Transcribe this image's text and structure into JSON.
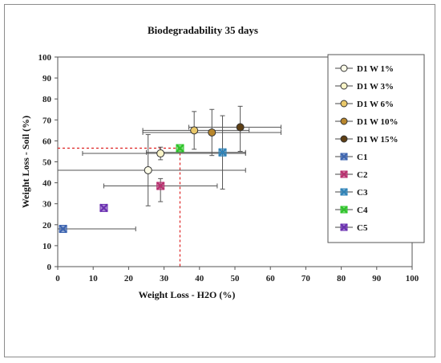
{
  "chart_data": {
    "type": "scatter",
    "title": "Biodegradability 35 days",
    "xlabel": "Weight Loss - H2O (%)",
    "ylabel": "Weight Loss - Soil (%)",
    "xlim": [
      0,
      100
    ],
    "ylim": [
      0,
      100
    ],
    "x_ticks": [
      "0",
      "10",
      "20",
      "30",
      "40",
      "50",
      "60",
      "70",
      "80",
      "90",
      "100"
    ],
    "y_ticks": [
      "0",
      "10",
      "20",
      "30",
      "40",
      "50",
      "60",
      "70",
      "80",
      "90",
      "100"
    ],
    "grid": false,
    "legend_position": "right",
    "series": [
      {
        "name": "D1 W 1%",
        "marker": "circle",
        "color": "#fdfce8",
        "x": 25.5,
        "y": 46,
        "xerr": [
          0,
          53
        ],
        "yerr": [
          29,
          63
        ]
      },
      {
        "name": "D1 W 3%",
        "marker": "circle",
        "color": "#faf4c8",
        "x": 29,
        "y": 54,
        "xerr": [
          7,
          53
        ],
        "yerr": [
          51,
          57
        ]
      },
      {
        "name": "D1 W 6%",
        "marker": "circle",
        "color": "#e9c86a",
        "x": 38.5,
        "y": 65,
        "xerr": [
          24,
          54
        ],
        "yerr": [
          56,
          74
        ]
      },
      {
        "name": "D1 W 10%",
        "marker": "circle",
        "color": "#b8862c",
        "x": 43.5,
        "y": 64,
        "xerr": [
          24,
          63
        ],
        "yerr": [
          53,
          75
        ]
      },
      {
        "name": "D1 W 15%",
        "marker": "circle",
        "color": "#5e3f14",
        "x": 51.5,
        "y": 66.5,
        "xerr": [
          37,
          63
        ],
        "yerr": [
          55,
          76.5
        ]
      },
      {
        "name": "C1",
        "marker": "x-square",
        "color": "#3d64b0",
        "x": 1.5,
        "y": 18,
        "xerr": [
          0,
          22
        ],
        "yerr": [
          18,
          18
        ]
      },
      {
        "name": "C2",
        "marker": "x-square",
        "color": "#b8306f",
        "x": 29,
        "y": 38.5,
        "xerr": [
          13,
          45
        ],
        "yerr": [
          31,
          42
        ]
      },
      {
        "name": "C3",
        "marker": "x-square",
        "color": "#2f83b8",
        "x": 46.5,
        "y": 54.5,
        "xerr": [
          25,
          53
        ],
        "yerr": [
          37,
          72
        ]
      },
      {
        "name": "C4",
        "marker": "x-square",
        "color": "#2ec42a",
        "x": 34.5,
        "y": 56.5,
        "xerr": [
          0,
          34.5
        ],
        "yerr": [
          0,
          56.5
        ],
        "dashed": true
      },
      {
        "name": "C5",
        "marker": "x-square",
        "color": "#6a2fb0",
        "x": 13,
        "y": 28,
        "xerr": [
          13,
          13
        ],
        "yerr": [
          28,
          28
        ]
      }
    ]
  }
}
